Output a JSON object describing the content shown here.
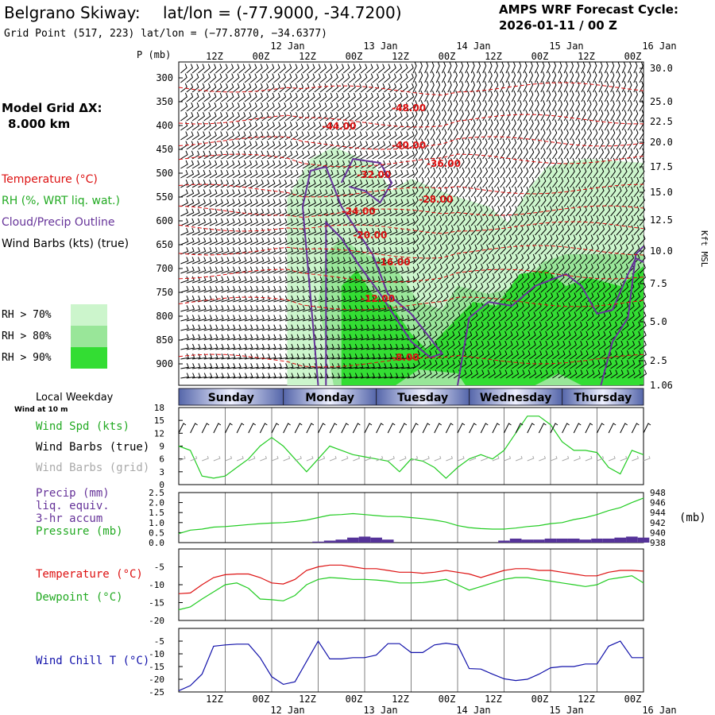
{
  "header": {
    "station": "Belgrano Skiway:",
    "latlon": "lat/lon = (-77.9000, -34.7200)",
    "gridpoint": "Grid Point (517, 223) lat/lon = (−77.8770, −34.6377)",
    "product": "AMPS WRF Forecast Cycle:",
    "cycle": "2026-01-11 / 00  Z"
  },
  "left_panel": {
    "model_grid_label": "Model Grid ΔX:",
    "model_grid_value": "8.000 km",
    "legend_temp": "Temperature (°C)",
    "legend_rh": "RH (%, WRT liq. wat.)",
    "legend_cloud": "Cloud/Precip Outline",
    "legend_wind": "Wind Barbs (kts) (true)",
    "rh_keys": [
      {
        "label": "RH > 70%",
        "color": "#ccf5cc"
      },
      {
        "label": "RH > 80%",
        "color": "#99e699"
      },
      {
        "label": "RH > 90%",
        "color": "#33dd33"
      }
    ]
  },
  "time_axis": {
    "top_hours": [
      "12Z",
      "00Z",
      "12Z",
      "00Z",
      "12Z",
      "00Z",
      "12Z",
      "00Z",
      "12Z",
      "00Z"
    ],
    "top_dates": [
      "12 Jan",
      "13 Jan",
      "14 Jan",
      "15 Jan",
      "16 Jan"
    ],
    "bottom_hours": [
      "12Z",
      "00Z",
      "12Z",
      "00Z",
      "12Z",
      "00Z",
      "12Z",
      "00Z",
      "12Z",
      "00Z"
    ],
    "bottom_dates": [
      "12 Jan",
      "13 Jan",
      "14 Jan",
      "15 Jan",
      "16 Jan"
    ],
    "weekdays": [
      "Sunday",
      "Monday",
      "Tuesday",
      "Wednesday",
      "Thursday"
    ],
    "local_weekday_label": "Local Weekday",
    "wind_at_label": "Wind at 10 m"
  },
  "chart_data": [
    {
      "type": "area",
      "name": "cross-section",
      "y_axis_left_label": "P (mb)",
      "y_axis_left_ticks": [
        "300",
        "350",
        "400",
        "450",
        "500",
        "550",
        "600",
        "650",
        "700",
        "750",
        "800",
        "850",
        "900"
      ],
      "y_axis_right_ticks": [
        "30.0",
        "25.0",
        "22.5",
        "20.0",
        "17.5",
        "15.0",
        "12.5",
        "10.0",
        "7.5",
        "5.0",
        "2.5",
        "1.06"
      ],
      "y_axis_right_label": "Kft MSL",
      "temperature_contours": [
        {
          "label": "-48.00"
        },
        {
          "label": "-44.00"
        },
        {
          "label": "-40.00"
        },
        {
          "label": "-36.00"
        },
        {
          "label": "-32.00"
        },
        {
          "label": "-28.00"
        },
        {
          "label": "-24.00"
        },
        {
          "label": "-20.00"
        },
        {
          "label": "-16.00"
        },
        {
          "label": "-12.00"
        },
        {
          "label": "-8.00"
        }
      ]
    },
    {
      "type": "line",
      "name": "wind",
      "ylabel_lines": [
        "Wind Spd (kts)",
        "Wind Barbs (true)",
        "Wind Barbs (grid)"
      ],
      "y_ticks": [
        "0",
        "3",
        "6",
        "9",
        "12",
        "15",
        "18"
      ],
      "ylim": [
        0,
        18
      ],
      "x_hours": [
        0,
        3,
        6,
        9,
        12,
        15,
        18,
        21,
        24,
        27,
        30,
        33,
        36,
        39,
        42,
        45,
        48,
        51,
        54,
        57,
        60,
        63,
        66,
        69,
        72,
        75,
        78,
        81,
        84,
        87,
        90,
        93,
        96,
        99,
        102,
        105,
        108,
        111,
        114,
        117,
        120
      ],
      "series": [
        {
          "name": "Wind Spd (kts)",
          "color": "#22cc22",
          "values": [
            9,
            8,
            2,
            1.5,
            2,
            4,
            6,
            9,
            11,
            9,
            6,
            3,
            6,
            9,
            8,
            7,
            6.5,
            6,
            5.5,
            3,
            6,
            5.5,
            4,
            1.5,
            4,
            6,
            7,
            6,
            8,
            12,
            16,
            16,
            14,
            10,
            8,
            8,
            7.5,
            4,
            2.5,
            8,
            7
          ]
        }
      ]
    },
    {
      "type": "bar",
      "name": "precip-pressure",
      "ylabel_lines": [
        "Precip (mm)",
        "liq. equiv.",
        "3-hr accum",
        "Pressure (mb)"
      ],
      "y_left_ticks": [
        "0.0",
        "0.5",
        "1.0",
        "1.5",
        "2.0",
        "2.5"
      ],
      "y_right_ticks": [
        "938",
        "940",
        "942",
        "944",
        "946",
        "948"
      ],
      "y_right_unit": "(mb)",
      "ylim": [
        0,
        2.5
      ],
      "ylim_right": [
        938,
        948
      ],
      "x_hours": [
        0,
        3,
        6,
        9,
        12,
        15,
        18,
        21,
        24,
        27,
        30,
        33,
        36,
        39,
        42,
        45,
        48,
        51,
        54,
        57,
        60,
        63,
        66,
        69,
        72,
        75,
        78,
        81,
        84,
        87,
        90,
        93,
        96,
        99,
        102,
        105,
        108,
        111,
        114,
        117,
        120
      ],
      "series": [
        {
          "name": "Precip",
          "color": "#553399",
          "values": [
            0,
            0,
            0,
            0,
            0,
            0,
            0,
            0,
            0,
            0,
            0,
            0,
            0.05,
            0.1,
            0.15,
            0.25,
            0.3,
            0.25,
            0.15,
            0,
            0,
            0,
            0,
            0,
            0,
            0,
            0,
            0,
            0.1,
            0.2,
            0.15,
            0.15,
            0.2,
            0.2,
            0.2,
            0.15,
            0.2,
            0.2,
            0.25,
            0.3,
            0.25
          ]
        },
        {
          "name": "Pressure (mb)",
          "color": "#22cc22",
          "values": [
            939.8,
            940.5,
            940.7,
            941.1,
            941.2,
            941.4,
            941.6,
            941.8,
            941.9,
            942.0,
            942.2,
            942.5,
            943.0,
            943.5,
            943.6,
            943.8,
            943.6,
            943.4,
            943.2,
            943.2,
            943.0,
            942.8,
            942.5,
            942.1,
            941.4,
            941.0,
            940.8,
            940.7,
            940.7,
            940.9,
            941.2,
            941.4,
            941.8,
            942.0,
            942.6,
            943.0,
            943.6,
            944.4,
            945.0,
            946.0,
            946.9
          ]
        }
      ]
    },
    {
      "type": "line",
      "name": "temperature-dewpoint",
      "ylabel_lines": [
        "Temperature (°C)",
        "Dewpoint (°C)"
      ],
      "y_ticks": [
        "-20",
        "-15",
        "-10",
        "-5"
      ],
      "ylim": [
        -20,
        0
      ],
      "x_hours": [
        0,
        3,
        6,
        9,
        12,
        15,
        18,
        21,
        24,
        27,
        30,
        33,
        36,
        39,
        42,
        45,
        48,
        51,
        54,
        57,
        60,
        63,
        66,
        69,
        72,
        75,
        78,
        81,
        84,
        87,
        90,
        93,
        96,
        99,
        102,
        105,
        108,
        111,
        114,
        117,
        120
      ],
      "series": [
        {
          "name": "Temperature (°C)",
          "color": "#dd1111",
          "values": [
            -12.5,
            -12.3,
            -10,
            -8,
            -7.2,
            -7,
            -7,
            -8,
            -9.5,
            -9.8,
            -8.5,
            -6,
            -5,
            -4.5,
            -4.5,
            -5,
            -5.5,
            -5.5,
            -6,
            -6.5,
            -6.5,
            -6.8,
            -6.5,
            -6,
            -6.5,
            -7,
            -8,
            -7,
            -6,
            -5.5,
            -5.5,
            -6,
            -6,
            -6.5,
            -7,
            -7.5,
            -7.5,
            -6.5,
            -6,
            -6,
            -6.2
          ]
        },
        {
          "name": "Dewpoint (°C)",
          "color": "#22cc22",
          "values": [
            -17,
            -16.2,
            -14,
            -12,
            -10,
            -9.5,
            -11,
            -14,
            -14.2,
            -14.5,
            -13,
            -10,
            -8.5,
            -8,
            -8.2,
            -8.5,
            -8.5,
            -8.7,
            -9,
            -9.5,
            -9.5,
            -9.4,
            -9,
            -8.5,
            -10,
            -11.5,
            -10.5,
            -9.5,
            -8.5,
            -8,
            -8,
            -8.5,
            -9,
            -9.5,
            -10,
            -10.5,
            -10,
            -8.5,
            -8,
            -7.5,
            -9.5
          ]
        }
      ]
    },
    {
      "type": "line",
      "name": "wind-chill",
      "ylabel_lines": [
        "Wind Chill T (°C)"
      ],
      "y_ticks": [
        "-25",
        "-20",
        "-15",
        "-10",
        "-5"
      ],
      "ylim": [
        -25,
        0
      ],
      "x_hours": [
        0,
        3,
        6,
        9,
        12,
        15,
        18,
        21,
        24,
        27,
        30,
        33,
        36,
        39,
        42,
        45,
        48,
        51,
        54,
        57,
        60,
        63,
        66,
        69,
        72,
        75,
        78,
        81,
        84,
        87,
        90,
        93,
        96,
        99,
        102,
        105,
        108,
        111,
        114,
        117,
        120
      ],
      "series": [
        {
          "name": "Wind Chill T (°C)",
          "color": "#1111aa",
          "values": [
            -24.5,
            -22.5,
            -18,
            -7,
            -6.5,
            -6.2,
            -6.2,
            -11.5,
            -19,
            -22,
            -21,
            -13,
            -5,
            -12,
            -12,
            -11.5,
            -11.5,
            -10.5,
            -6,
            -6,
            -9.5,
            -9.5,
            -6.5,
            -5.8,
            -6.5,
            -15.8,
            -16,
            -18,
            -19.8,
            -20.5,
            -20,
            -18,
            -15.5,
            -15,
            -15,
            -14,
            -14,
            -7,
            -5,
            -11.5,
            -11.5
          ]
        }
      ]
    }
  ]
}
